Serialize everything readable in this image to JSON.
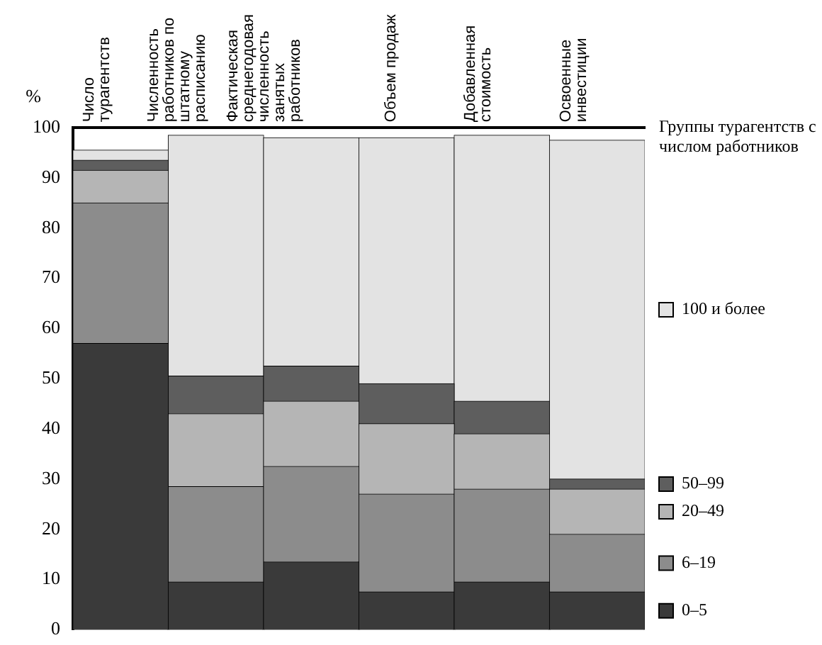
{
  "chart_data": {
    "type": "bar",
    "stacked": true,
    "ylabel": "%",
    "legend_title": "Группы турагентств с числом работников",
    "categories": [
      "Число турагентств",
      "Численность работников по штатному расписанию",
      "Фактическая среднегодовая численность занятых работников",
      "Объем продаж",
      "Добавленная стоимость",
      "Освоенные инвестиции"
    ],
    "ylim": [
      0,
      100
    ],
    "yticks": [
      0,
      10,
      20,
      30,
      40,
      50,
      60,
      70,
      80,
      90,
      100
    ],
    "grid": false,
    "legend": "right",
    "series": [
      {
        "name": "0–5",
        "color": "#3a3a3a",
        "values": [
          57,
          9.5,
          13.5,
          7.5,
          9.5,
          7.5
        ]
      },
      {
        "name": "6–19",
        "color": "#8c8c8c",
        "values": [
          28,
          19,
          19,
          19.5,
          18.5,
          11.5
        ]
      },
      {
        "name": "20–49",
        "color": "#b5b5b5",
        "values": [
          6.5,
          14.5,
          13,
          14,
          11,
          9
        ]
      },
      {
        "name": "50–99",
        "color": "#5e5e5e",
        "values": [
          2,
          7.5,
          7,
          8,
          6.5,
          2
        ]
      },
      {
        "name": "100 и более",
        "color": "#e3e3e3",
        "values": [
          2,
          48,
          45.5,
          49,
          53,
          67.5
        ]
      }
    ]
  }
}
